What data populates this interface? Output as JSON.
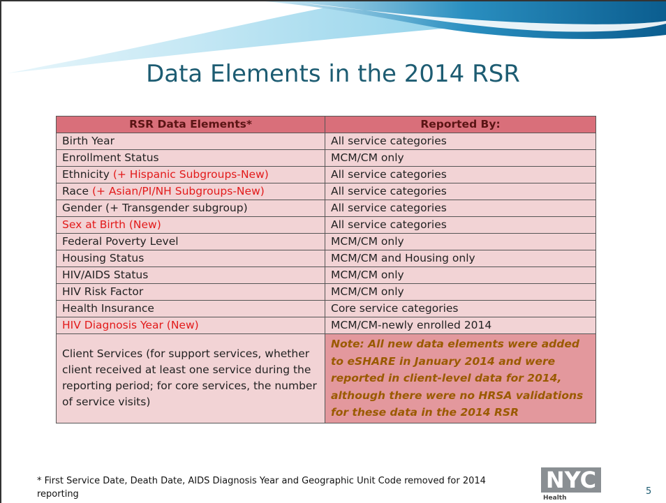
{
  "slide": {
    "title": "Data Elements in the 2014 RSR",
    "table": {
      "header": [
        "RSR Data Elements*",
        "Reported By:"
      ],
      "rows": [
        {
          "element": "Birth Year",
          "reported_by": "All service categories"
        },
        {
          "element": "Enrollment Status",
          "reported_by": "MCM/CM only"
        },
        {
          "element": "Ethnicity",
          "addition": "(+ Hispanic Subgroups-New)",
          "reported_by": "All service categories"
        },
        {
          "element": "Race",
          "addition": "(+ Asian/PI/NH Subgroups-New)",
          "reported_by": "All service categories"
        },
        {
          "element": "Gender (+ Transgender subgroup)",
          "reported_by": "All service categories"
        },
        {
          "element": "Sex at Birth (New)",
          "new": true,
          "reported_by": "All service categories"
        },
        {
          "element": "Federal Poverty Level",
          "reported_by": "MCM/CM only"
        },
        {
          "element": "Housing Status",
          "reported_by": "MCM/CM and Housing only"
        },
        {
          "element": "HIV/AIDS Status",
          "reported_by": "MCM/CM only"
        },
        {
          "element": "HIV Risk Factor",
          "reported_by": "MCM/CM only"
        },
        {
          "element": "Health Insurance",
          "reported_by": "Core service categories"
        },
        {
          "element": "HIV Diagnosis Year (New)",
          "new": true,
          "reported_by": "MCM/CM-newly enrolled 2014"
        },
        {
          "element": "Client Services (for support services, whether client received at least one service during the reporting period; for core services, the number of service visits)",
          "note": "Note:  All new data elements were added to eSHARE in January 2014 and were reported in client-level data for 2014, although there were no HRSA validations for these data in the 2014 RSR"
        }
      ]
    },
    "footnote": "* First Service Date, Death Date, AIDS Diagnosis Year and Geographic Unit Code removed for 2014 reporting",
    "logo": {
      "wordmark": "NYC",
      "subtitle": "Health"
    },
    "page_number": "5"
  }
}
